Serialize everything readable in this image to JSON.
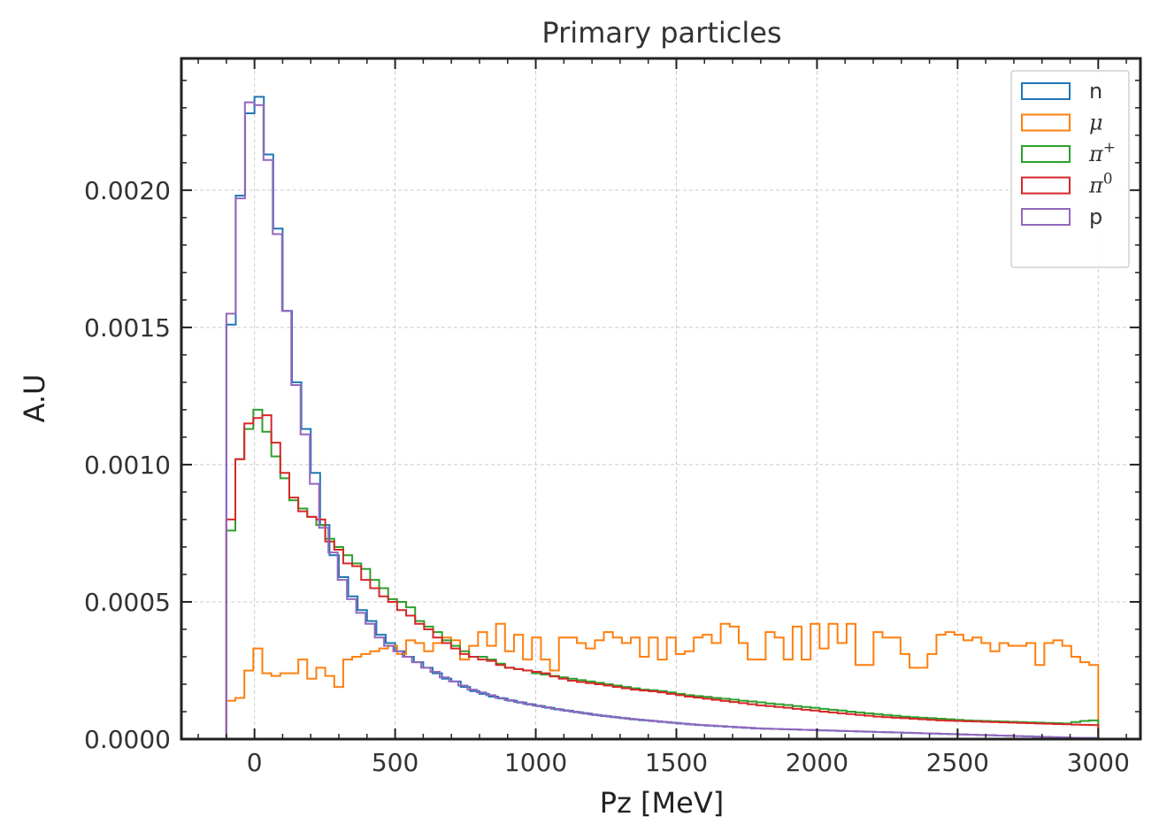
{
  "chart_data": {
    "type": "histogram-step",
    "title": "Primary particles",
    "xlabel": "Pz [MeV]",
    "ylabel": "A.U",
    "xlim": [
      -260,
      3150
    ],
    "ylim": [
      0,
      0.00248
    ],
    "xticks": [
      0,
      500,
      1000,
      1500,
      2000,
      2500,
      3000
    ],
    "xtick_labels": [
      "0",
      "500",
      "1000",
      "1500",
      "2000",
      "2500",
      "3000"
    ],
    "yticks": [
      0,
      0.0005,
      0.001,
      0.0015,
      0.002
    ],
    "ytick_labels": [
      "0.0000",
      "0.0005",
      "0.0010",
      "0.0015",
      "0.0020"
    ],
    "grid": true,
    "legend_position": "top-right",
    "bin_start": -100,
    "bin_width": 33.33,
    "series": [
      {
        "name": "n",
        "legend_label": "n",
        "color": "#1f77b4",
        "values": [
          0.00151,
          0.00198,
          0.00228,
          0.00234,
          0.00213,
          0.00186,
          0.00156,
          0.0013,
          0.00113,
          0.00097,
          0.00078,
          0.00067,
          0.00059,
          0.00052,
          0.00047,
          0.00043,
          0.00038,
          0.00035,
          0.00032,
          0.0003,
          0.00028,
          0.00026,
          0.00024,
          0.00022,
          0.00021,
          0.00019,
          0.000175,
          0.000165,
          0.000155,
          0.000148,
          0.00014,
          0.000133,
          0.000126,
          0.00012,
          0.000114,
          0.000108,
          0.000103,
          9.8e-05,
          9.3e-05,
          8.8e-05,
          8.4e-05,
          8e-05,
          7.6e-05,
          7.2e-05,
          6.9e-05,
          6.6e-05,
          6.3e-05,
          6e-05,
          5.7e-05,
          5.4e-05,
          5.1e-05,
          4.9e-05,
          4.7e-05,
          4.5e-05,
          4.3e-05,
          4.1e-05,
          3.9e-05,
          3.8e-05,
          3.7e-05,
          3.6e-05,
          3.5e-05,
          3.4e-05,
          3.3e-05,
          3.2e-05,
          3.1e-05,
          3e-05,
          2.9e-05,
          2.8e-05,
          2.7e-05,
          2.6e-05,
          2.5e-05,
          2.4e-05,
          2.3e-05,
          2.2e-05,
          2.1e-05,
          2e-05,
          1.9e-05,
          1.8e-05,
          1.7e-05,
          1.6e-05,
          1.5e-05,
          1.4e-05,
          1.3e-05,
          1.2e-05,
          1.1e-05,
          1e-05,
          9e-06,
          8e-06,
          7e-06,
          6e-06,
          5e-06,
          4e-06,
          4e-06
        ]
      },
      {
        "name": "mu",
        "legend_label": "μ",
        "color": "#ff7f0e",
        "values": [
          0.00014,
          0.00015,
          0.00025,
          0.00033,
          0.00024,
          0.00023,
          0.00024,
          0.00024,
          0.00029,
          0.00022,
          0.00026,
          0.00023,
          0.00019,
          0.00029,
          0.0003,
          0.00031,
          0.00032,
          0.00033,
          0.00034,
          0.00031,
          0.00036,
          0.00035,
          0.00032,
          0.00035,
          0.00037,
          0.00036,
          0.00029,
          0.00034,
          0.00039,
          0.00034,
          0.00042,
          0.00032,
          0.00038,
          0.00029,
          0.00037,
          0.00029,
          0.00025,
          0.00037,
          0.00037,
          0.00035,
          0.00033,
          0.00036,
          0.00039,
          0.00037,
          0.00035,
          0.00037,
          0.0003,
          0.00037,
          0.00029,
          0.00037,
          0.00031,
          0.00032,
          0.00037,
          0.00038,
          0.00035,
          0.00042,
          0.00041,
          0.00035,
          0.00029,
          0.00029,
          0.00039,
          0.00037,
          0.00029,
          0.00041,
          0.00029,
          0.00042,
          0.00033,
          0.00042,
          0.00035,
          0.00042,
          0.00027,
          0.00027,
          0.00039,
          0.00037,
          0.00037,
          0.00031,
          0.00026,
          0.00026,
          0.00031,
          0.00038,
          0.00039,
          0.00038,
          0.00036,
          0.00037,
          0.00035,
          0.00032,
          0.00035,
          0.00034,
          0.00034,
          0.00035,
          0.00027,
          0.00035,
          0.00036,
          0.00034,
          0.0003,
          0.00028,
          0.00027
        ]
      },
      {
        "name": "pi_plus",
        "legend_label": "π",
        "legend_sup": "+",
        "color": "#2ca02c",
        "values": [
          0.00076,
          0.00102,
          0.00113,
          0.0012,
          0.00112,
          0.00103,
          0.00095,
          0.00087,
          0.00084,
          0.00081,
          0.00078,
          0.00073,
          0.0007,
          0.00067,
          0.00064,
          0.00062,
          0.00058,
          0.00055,
          0.00051,
          0.0005,
          0.00048,
          0.00043,
          0.00041,
          0.00039,
          0.00036,
          0.00034,
          0.00032,
          0.0003,
          0.0003,
          0.00029,
          0.000275,
          0.00026,
          0.000255,
          0.00025,
          0.00024,
          0.000235,
          0.00023,
          0.000225,
          0.00022,
          0.000215,
          0.00021,
          0.000205,
          0.0002,
          0.000195,
          0.00019,
          0.000185,
          0.00018,
          0.000178,
          0.000175,
          0.00017,
          0.000165,
          0.00016,
          0.000157,
          0.000154,
          0.00015,
          0.000147,
          0.000144,
          0.00014,
          0.000137,
          0.000134,
          0.00013,
          0.000127,
          0.000124,
          0.00012,
          0.000117,
          0.000114,
          0.00011,
          0.000107,
          0.000104,
          0.0001,
          9.7e-05,
          9.4e-05,
          9.1e-05,
          8.8e-05,
          8.5e-05,
          8.2e-05,
          8e-05,
          7.8e-05,
          7.6e-05,
          7.4e-05,
          7.2e-05,
          7e-05,
          6.8e-05,
          6.7e-05,
          6.6e-05,
          6.5e-05,
          6.4e-05,
          6.3e-05,
          6.2e-05,
          6.1e-05,
          6e-05,
          5.9e-05,
          5.8e-05,
          5.7e-05,
          6.2e-05,
          6.6e-05,
          6.8e-05
        ]
      },
      {
        "name": "pi_zero",
        "legend_label": "π",
        "legend_sup": "0",
        "color": "#d62728",
        "values": [
          0.0008,
          0.00102,
          0.00115,
          0.00117,
          0.00118,
          0.00108,
          0.00097,
          0.00088,
          0.00083,
          0.00081,
          0.0008,
          0.00072,
          0.00069,
          0.00064,
          0.00063,
          0.00058,
          0.00055,
          0.00052,
          0.0005,
          0.00047,
          0.00045,
          0.00042,
          0.0004,
          0.00037,
          0.00035,
          0.00033,
          0.00031,
          0.0003,
          0.00029,
          0.000285,
          0.00027,
          0.00026,
          0.000255,
          0.00025,
          0.000245,
          0.00024,
          0.000228,
          0.00022,
          0.000213,
          0.000208,
          0.000204,
          0.0002,
          0.000195,
          0.00019,
          0.000185,
          0.00018,
          0.000177,
          0.000174,
          0.00017,
          0.000165,
          0.00016,
          0.000155,
          0.000151,
          0.000147,
          0.000143,
          0.000139,
          0.000135,
          0.000131,
          0.000127,
          0.000123,
          0.00012,
          0.000117,
          0.000114,
          0.00011,
          0.000107,
          0.000104,
          0.0001,
          9.7e-05,
          9.4e-05,
          9.1e-05,
          8.8e-05,
          8.5e-05,
          8.2e-05,
          8e-05,
          7.8e-05,
          7.6e-05,
          7.4e-05,
          7.2e-05,
          7e-05,
          6.8e-05,
          6.7e-05,
          6.6e-05,
          6.5e-05,
          6.4e-05,
          6.3e-05,
          6.2e-05,
          6.1e-05,
          6e-05,
          5.9e-05,
          5.8e-05,
          5.7e-05,
          5.6e-05,
          5.5e-05,
          5.4e-05,
          5.3e-05,
          5.2e-05,
          5.1e-05
        ]
      },
      {
        "name": "p",
        "legend_label": "p",
        "color": "#9467bd",
        "values": [
          0.00155,
          0.00197,
          0.00232,
          0.00231,
          0.00211,
          0.00184,
          0.00156,
          0.00129,
          0.00111,
          0.00093,
          0.00077,
          0.00068,
          0.00058,
          0.00051,
          0.00046,
          0.00042,
          0.00037,
          0.00034,
          0.00032,
          0.0003,
          0.00028,
          0.00026,
          0.000245,
          0.000225,
          0.00021,
          0.000195,
          0.00018,
          0.00017,
          0.00016,
          0.00015,
          0.000142,
          0.000135,
          0.000128,
          0.000122,
          0.000116,
          0.00011,
          0.000105,
          0.0001,
          9.5e-05,
          9e-05,
          8.6e-05,
          8.2e-05,
          7.8e-05,
          7.4e-05,
          7.1e-05,
          6.8e-05,
          6.5e-05,
          6.2e-05,
          5.9e-05,
          5.6e-05,
          5.3e-05,
          5.1e-05,
          4.9e-05,
          4.7e-05,
          4.5e-05,
          4.3e-05,
          4.1e-05,
          3.9e-05,
          3.8e-05,
          3.7e-05,
          3.6e-05,
          3.5e-05,
          3.4e-05,
          3.3e-05,
          3.2e-05,
          3.1e-05,
          3e-05,
          2.9e-05,
          2.8e-05,
          2.7e-05,
          2.6e-05,
          2.5e-05,
          2.4e-05,
          2.3e-05,
          2.2e-05,
          2.1e-05,
          2e-05,
          1.9e-05,
          1.8e-05,
          1.7e-05,
          1.6e-05,
          1.5e-05,
          1.4e-05,
          1.3e-05,
          1.2e-05,
          1.1e-05,
          1e-05,
          9e-06,
          8e-06,
          7e-06,
          6e-06,
          5e-06,
          4e-06,
          4e-06
        ]
      }
    ]
  }
}
